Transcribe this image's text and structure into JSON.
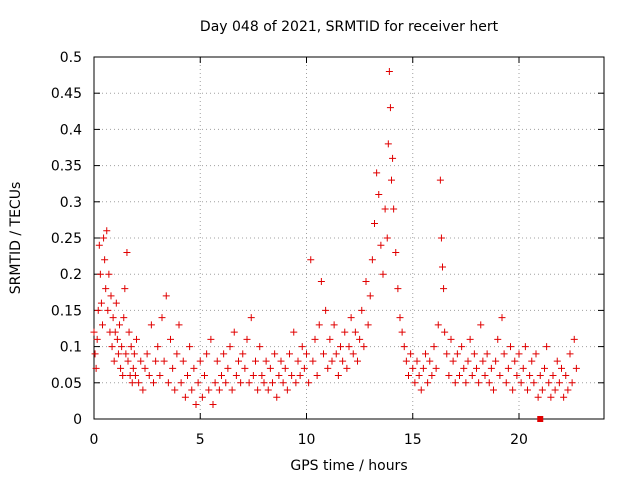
{
  "chart_data": {
    "type": "scatter",
    "title": "Day 048 of 2021, SRMTID for receiver hert",
    "xlabel": "GPS time / hours",
    "ylabel": "SRMTID / TECUs",
    "xlim": [
      0,
      24
    ],
    "ylim": [
      0,
      0.5
    ],
    "x_ticks": [
      0,
      5,
      10,
      15,
      20
    ],
    "x_tick_labels": [
      "0",
      "5",
      "10",
      "15",
      "20"
    ],
    "y_ticks": [
      0,
      0.05,
      0.1,
      0.15,
      0.2,
      0.25,
      0.3,
      0.35,
      0.4,
      0.45,
      0.5
    ],
    "y_tick_labels": [
      "0",
      "0.05",
      "0.1",
      "0.15",
      "0.2",
      "0.25",
      "0.3",
      "0.35",
      "0.4",
      "0.45",
      "0.5"
    ],
    "grid": true,
    "marker": "+",
    "color": "#e00000",
    "extra_marker": {
      "x": 21.0,
      "y": 0.0,
      "shape": "square"
    },
    "series": [
      {
        "name": "SRMTID",
        "points": [
          [
            0.0,
            0.12
          ],
          [
            0.05,
            0.09
          ],
          [
            0.1,
            0.07
          ],
          [
            0.15,
            0.11
          ],
          [
            0.2,
            0.15
          ],
          [
            0.25,
            0.24
          ],
          [
            0.3,
            0.2
          ],
          [
            0.35,
            0.16
          ],
          [
            0.4,
            0.13
          ],
          [
            0.45,
            0.25
          ],
          [
            0.5,
            0.22
          ],
          [
            0.55,
            0.18
          ],
          [
            0.6,
            0.26
          ],
          [
            0.65,
            0.15
          ],
          [
            0.7,
            0.2
          ],
          [
            0.75,
            0.12
          ],
          [
            0.8,
            0.17
          ],
          [
            0.85,
            0.1
          ],
          [
            0.9,
            0.14
          ],
          [
            0.95,
            0.08
          ],
          [
            1.0,
            0.12
          ],
          [
            1.05,
            0.16
          ],
          [
            1.1,
            0.11
          ],
          [
            1.15,
            0.09
          ],
          [
            1.2,
            0.13
          ],
          [
            1.25,
            0.07
          ],
          [
            1.3,
            0.1
          ],
          [
            1.35,
            0.06
          ],
          [
            1.4,
            0.14
          ],
          [
            1.45,
            0.18
          ],
          [
            1.5,
            0.09
          ],
          [
            1.55,
            0.23
          ],
          [
            1.6,
            0.08
          ],
          [
            1.65,
            0.12
          ],
          [
            1.7,
            0.06
          ],
          [
            1.75,
            0.1
          ],
          [
            1.8,
            0.05
          ],
          [
            1.85,
            0.07
          ],
          [
            1.9,
            0.09
          ],
          [
            1.95,
            0.06
          ],
          [
            2.0,
            0.11
          ],
          [
            2.1,
            0.05
          ],
          [
            2.2,
            0.08
          ],
          [
            2.3,
            0.04
          ],
          [
            2.4,
            0.07
          ],
          [
            2.5,
            0.09
          ],
          [
            2.6,
            0.06
          ],
          [
            2.7,
            0.13
          ],
          [
            2.8,
            0.05
          ],
          [
            2.9,
            0.08
          ],
          [
            3.0,
            0.1
          ],
          [
            3.1,
            0.06
          ],
          [
            3.2,
            0.14
          ],
          [
            3.3,
            0.08
          ],
          [
            3.4,
            0.17
          ],
          [
            3.5,
            0.05
          ],
          [
            3.6,
            0.11
          ],
          [
            3.7,
            0.07
          ],
          [
            3.8,
            0.04
          ],
          [
            3.9,
            0.09
          ],
          [
            4.0,
            0.13
          ],
          [
            4.1,
            0.05
          ],
          [
            4.2,
            0.08
          ],
          [
            4.3,
            0.03
          ],
          [
            4.4,
            0.06
          ],
          [
            4.5,
            0.1
          ],
          [
            4.6,
            0.04
          ],
          [
            4.7,
            0.07
          ],
          [
            4.8,
            0.02
          ],
          [
            4.9,
            0.05
          ],
          [
            5.0,
            0.08
          ],
          [
            5.1,
            0.03
          ],
          [
            5.2,
            0.06
          ],
          [
            5.3,
            0.09
          ],
          [
            5.4,
            0.04
          ],
          [
            5.5,
            0.11
          ],
          [
            5.6,
            0.02
          ],
          [
            5.7,
            0.05
          ],
          [
            5.8,
            0.08
          ],
          [
            5.9,
            0.04
          ],
          [
            6.0,
            0.06
          ],
          [
            6.1,
            0.09
          ],
          [
            6.2,
            0.05
          ],
          [
            6.3,
            0.07
          ],
          [
            6.4,
            0.1
          ],
          [
            6.5,
            0.04
          ],
          [
            6.6,
            0.12
          ],
          [
            6.7,
            0.06
          ],
          [
            6.8,
            0.08
          ],
          [
            6.9,
            0.05
          ],
          [
            7.0,
            0.09
          ],
          [
            7.1,
            0.07
          ],
          [
            7.2,
            0.11
          ],
          [
            7.3,
            0.05
          ],
          [
            7.4,
            0.14
          ],
          [
            7.5,
            0.06
          ],
          [
            7.6,
            0.08
          ],
          [
            7.7,
            0.04
          ],
          [
            7.8,
            0.1
          ],
          [
            7.9,
            0.06
          ],
          [
            8.0,
            0.05
          ],
          [
            8.1,
            0.08
          ],
          [
            8.2,
            0.04
          ],
          [
            8.3,
            0.07
          ],
          [
            8.4,
            0.05
          ],
          [
            8.5,
            0.09
          ],
          [
            8.6,
            0.03
          ],
          [
            8.7,
            0.06
          ],
          [
            8.8,
            0.08
          ],
          [
            8.9,
            0.05
          ],
          [
            9.0,
            0.07
          ],
          [
            9.1,
            0.04
          ],
          [
            9.2,
            0.09
          ],
          [
            9.3,
            0.06
          ],
          [
            9.4,
            0.12
          ],
          [
            9.5,
            0.05
          ],
          [
            9.6,
            0.08
          ],
          [
            9.7,
            0.06
          ],
          [
            9.8,
            0.1
          ],
          [
            9.9,
            0.07
          ],
          [
            10.0,
            0.09
          ],
          [
            10.1,
            0.05
          ],
          [
            10.2,
            0.22
          ],
          [
            10.3,
            0.08
          ],
          [
            10.4,
            0.11
          ],
          [
            10.5,
            0.06
          ],
          [
            10.6,
            0.13
          ],
          [
            10.7,
            0.19
          ],
          [
            10.8,
            0.09
          ],
          [
            10.9,
            0.15
          ],
          [
            11.0,
            0.07
          ],
          [
            11.1,
            0.11
          ],
          [
            11.2,
            0.08
          ],
          [
            11.3,
            0.13
          ],
          [
            11.4,
            0.09
          ],
          [
            11.5,
            0.06
          ],
          [
            11.6,
            0.1
          ],
          [
            11.7,
            0.08
          ],
          [
            11.8,
            0.12
          ],
          [
            11.9,
            0.07
          ],
          [
            12.0,
            0.1
          ],
          [
            12.1,
            0.14
          ],
          [
            12.2,
            0.09
          ],
          [
            12.3,
            0.12
          ],
          [
            12.4,
            0.08
          ],
          [
            12.5,
            0.11
          ],
          [
            12.6,
            0.15
          ],
          [
            12.7,
            0.1
          ],
          [
            12.8,
            0.19
          ],
          [
            12.9,
            0.13
          ],
          [
            13.0,
            0.17
          ],
          [
            13.1,
            0.22
          ],
          [
            13.2,
            0.27
          ],
          [
            13.3,
            0.34
          ],
          [
            13.4,
            0.31
          ],
          [
            13.5,
            0.24
          ],
          [
            13.6,
            0.2
          ],
          [
            13.7,
            0.29
          ],
          [
            13.8,
            0.25
          ],
          [
            13.85,
            0.38
          ],
          [
            13.9,
            0.48
          ],
          [
            13.95,
            0.43
          ],
          [
            14.0,
            0.33
          ],
          [
            14.05,
            0.36
          ],
          [
            14.1,
            0.29
          ],
          [
            14.2,
            0.23
          ],
          [
            14.3,
            0.18
          ],
          [
            14.4,
            0.14
          ],
          [
            14.5,
            0.12
          ],
          [
            14.6,
            0.1
          ],
          [
            14.7,
            0.08
          ],
          [
            14.8,
            0.06
          ],
          [
            14.9,
            0.09
          ],
          [
            15.0,
            0.07
          ],
          [
            15.1,
            0.05
          ],
          [
            15.2,
            0.08
          ],
          [
            15.3,
            0.06
          ],
          [
            15.4,
            0.04
          ],
          [
            15.5,
            0.07
          ],
          [
            15.6,
            0.09
          ],
          [
            15.7,
            0.05
          ],
          [
            15.8,
            0.08
          ],
          [
            15.9,
            0.06
          ],
          [
            16.0,
            0.1
          ],
          [
            16.1,
            0.07
          ],
          [
            16.2,
            0.13
          ],
          [
            16.3,
            0.33
          ],
          [
            16.35,
            0.25
          ],
          [
            16.4,
            0.21
          ],
          [
            16.45,
            0.18
          ],
          [
            16.5,
            0.12
          ],
          [
            16.6,
            0.09
          ],
          [
            16.7,
            0.06
          ],
          [
            16.8,
            0.11
          ],
          [
            16.9,
            0.08
          ],
          [
            17.0,
            0.05
          ],
          [
            17.1,
            0.09
          ],
          [
            17.2,
            0.06
          ],
          [
            17.3,
            0.1
          ],
          [
            17.4,
            0.07
          ],
          [
            17.5,
            0.05
          ],
          [
            17.6,
            0.08
          ],
          [
            17.7,
            0.11
          ],
          [
            17.8,
            0.06
          ],
          [
            17.9,
            0.09
          ],
          [
            18.0,
            0.07
          ],
          [
            18.1,
            0.05
          ],
          [
            18.2,
            0.13
          ],
          [
            18.3,
            0.08
          ],
          [
            18.4,
            0.06
          ],
          [
            18.5,
            0.09
          ],
          [
            18.6,
            0.05
          ],
          [
            18.7,
            0.07
          ],
          [
            18.8,
            0.04
          ],
          [
            18.9,
            0.08
          ],
          [
            19.0,
            0.11
          ],
          [
            19.1,
            0.06
          ],
          [
            19.2,
            0.14
          ],
          [
            19.3,
            0.09
          ],
          [
            19.4,
            0.05
          ],
          [
            19.5,
            0.07
          ],
          [
            19.6,
            0.1
          ],
          [
            19.7,
            0.04
          ],
          [
            19.8,
            0.08
          ],
          [
            19.9,
            0.06
          ],
          [
            20.0,
            0.09
          ],
          [
            20.1,
            0.05
          ],
          [
            20.2,
            0.07
          ],
          [
            20.3,
            0.1
          ],
          [
            20.4,
            0.04
          ],
          [
            20.5,
            0.06
          ],
          [
            20.6,
            0.08
          ],
          [
            20.7,
            0.05
          ],
          [
            20.8,
            0.09
          ],
          [
            20.9,
            0.03
          ],
          [
            21.0,
            0.06
          ],
          [
            21.1,
            0.04
          ],
          [
            21.2,
            0.07
          ],
          [
            21.3,
            0.1
          ],
          [
            21.4,
            0.05
          ],
          [
            21.5,
            0.03
          ],
          [
            21.6,
            0.06
          ],
          [
            21.7,
            0.04
          ],
          [
            21.8,
            0.08
          ],
          [
            21.9,
            0.05
          ],
          [
            22.0,
            0.07
          ],
          [
            22.1,
            0.03
          ],
          [
            22.2,
            0.06
          ],
          [
            22.3,
            0.04
          ],
          [
            22.4,
            0.09
          ],
          [
            22.5,
            0.05
          ],
          [
            22.6,
            0.11
          ],
          [
            22.7,
            0.07
          ]
        ]
      }
    ]
  }
}
